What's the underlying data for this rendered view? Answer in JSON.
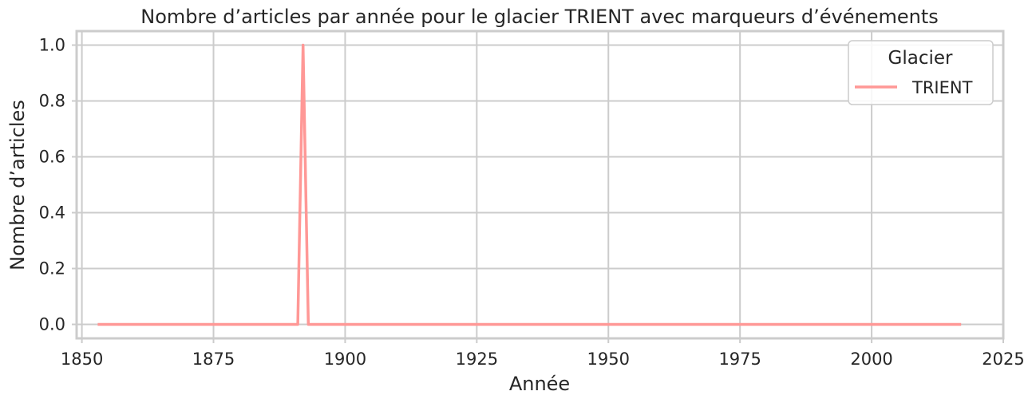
{
  "chart_data": {
    "type": "line",
    "title": "Nombre d’articles par année pour le glacier TRIENT avec marqueurs d’événements",
    "xlabel": "Année",
    "ylabel": "Nombre d’articles",
    "xlim": [
      1849,
      2025
    ],
    "ylim": [
      -0.05,
      1.05
    ],
    "xticks": [
      1850,
      1875,
      1900,
      1925,
      1950,
      1975,
      2000,
      2025
    ],
    "xtick_labels": [
      "1850",
      "1875",
      "1900",
      "1925",
      "1950",
      "1975",
      "2000",
      "2025"
    ],
    "yticks": [
      0.0,
      0.2,
      0.4,
      0.6,
      0.8,
      1.0
    ],
    "ytick_labels": [
      "0.0",
      "0.2",
      "0.4",
      "0.6",
      "0.8",
      "1.0"
    ],
    "grid": true,
    "legend": {
      "title": "Glacier",
      "placement": "top-right"
    },
    "series": [
      {
        "name": "TRIENT",
        "color": "#ff9896",
        "x": [
          1853,
          1891,
          1892,
          1893,
          2017
        ],
        "y": [
          0,
          0,
          1,
          0,
          0
        ]
      }
    ]
  }
}
